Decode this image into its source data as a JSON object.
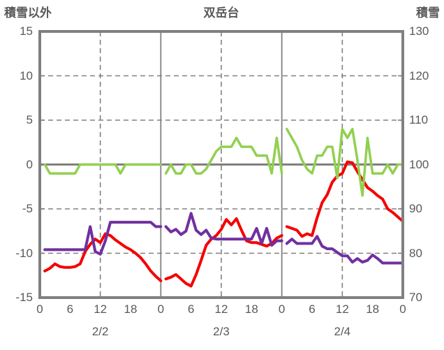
{
  "header": {
    "left_axis_title": "積雪以外",
    "chart_title": "双岳台",
    "right_axis_title": "積雪"
  },
  "colors": {
    "frame": "#808080",
    "gridline": "#808080",
    "zero_line": "#808080",
    "text": "#595959",
    "red_series": "#f40000",
    "purple_series": "#7030a0",
    "green_series": "#92d050"
  },
  "chart_data": {
    "type": "line",
    "title": "双岳台",
    "x_axis": {
      "unit": "hour",
      "range_hours": [
        0,
        72
      ],
      "tick_hours": [
        0,
        6,
        12,
        18,
        24,
        30,
        36,
        42,
        48,
        54,
        60,
        66,
        72
      ],
      "tick_labels": [
        "0",
        "6",
        "12",
        "18",
        "0",
        "6",
        "12",
        "18",
        "0",
        "6",
        "12",
        "18",
        "0"
      ],
      "day_labels": [
        {
          "text": "2/2",
          "hour": 12
        },
        {
          "text": "2/3",
          "hour": 36
        },
        {
          "text": "2/4",
          "hour": 60
        }
      ],
      "day_separator_hours": [
        24,
        48
      ],
      "dashed_gridline_hours": [
        12,
        36,
        60
      ]
    },
    "left_axis": {
      "title": "積雪以外",
      "range": [
        -15,
        15
      ],
      "ticks": [
        15,
        10,
        5,
        0,
        -5,
        -10,
        -15
      ],
      "tick_labels": [
        "15",
        "10",
        "5",
        "0",
        "-5",
        "-10",
        "-15"
      ]
    },
    "right_axis": {
      "title": "積雪",
      "range": [
        70,
        130
      ],
      "ticks": [
        130,
        120,
        110,
        100,
        90,
        80,
        70
      ],
      "tick_labels": [
        "130",
        "120",
        "110",
        "100",
        "90",
        "80",
        "70"
      ]
    },
    "grid": {
      "horizontal_dashed_at": [
        10,
        5,
        -5,
        -10
      ],
      "zero_line_solid": true
    },
    "legend": "none",
    "series": [
      {
        "name": "red-series",
        "color_key": "red_series",
        "axis": "left",
        "stroke_width": 4,
        "segments_start_hours": [
          1,
          25,
          49
        ],
        "segments": [
          [
            -12.0,
            -11.7,
            -11.2,
            -11.5,
            -11.6,
            -11.6,
            -11.5,
            -11.2,
            -9.8,
            -9.0,
            -8.4,
            -8.8,
            -7.8,
            -8.0,
            -8.5,
            -8.9,
            -9.3,
            -9.6,
            -10.0,
            -10.5,
            -11.2,
            -12.0,
            -12.6,
            -13.1
          ],
          [
            -12.9,
            -12.7,
            -12.4,
            -12.9,
            -13.4,
            -13.7,
            -12.4,
            -10.8,
            -9.1,
            -8.4,
            -8.0,
            -7.3,
            -6.2,
            -6.8,
            -6.1,
            -7.4,
            -8.6,
            -8.8,
            -8.8,
            -9.0,
            -9.2,
            -8.9,
            -8.3,
            -8.0
          ],
          [
            -7.0,
            -7.2,
            -7.4,
            -8.1,
            -7.8,
            -8.0,
            -6.0,
            -4.3,
            -3.4,
            -2.0,
            -1.3,
            -1.0,
            0.3,
            0.2,
            -0.8,
            -1.7,
            -2.6,
            -3.0,
            -3.5,
            -3.9,
            -5.0,
            -5.4,
            -5.9,
            -6.4
          ]
        ]
      },
      {
        "name": "purple-series",
        "color_key": "purple_series",
        "axis": "left",
        "stroke_width": 4,
        "segments_start_hours": [
          1,
          25,
          49
        ],
        "segments": [
          [
            -9.6,
            -9.6,
            -9.6,
            -9.6,
            -9.6,
            -9.6,
            -9.6,
            -9.6,
            -9.6,
            -7.0,
            -9.8,
            -10.1,
            -8.6,
            -6.5,
            -6.5,
            -6.5,
            -6.5,
            -6.5,
            -6.5,
            -6.5,
            -6.5,
            -6.5,
            -7.0,
            -7.0
          ],
          [
            -7.0,
            -7.6,
            -7.3,
            -7.9,
            -7.5,
            -5.5,
            -7.4,
            -7.9,
            -7.4,
            -8.3,
            -8.4,
            -8.4,
            -8.4,
            -8.4,
            -8.4,
            -8.4,
            -8.4,
            -8.4,
            -7.2,
            -8.9,
            -7.2,
            -9.1,
            -8.6,
            -8.6
          ],
          [
            -8.9,
            -8.4,
            -8.9,
            -8.9,
            -8.9,
            -8.9,
            -8.1,
            -9.2,
            -9.5,
            -9.5,
            -9.9,
            -10.3,
            -10.3,
            -11.0,
            -10.6,
            -11.0,
            -10.8,
            -10.2,
            -10.6,
            -11.1,
            -11.1,
            -11.1,
            -11.1,
            -11.1
          ]
        ]
      },
      {
        "name": "green-series",
        "color_key": "green_series",
        "axis": "right",
        "stroke_width": 3.5,
        "segments_start_hours": [
          1,
          25,
          49
        ],
        "segments": [
          [
            100,
            98,
            98,
            98,
            98,
            98,
            98,
            100,
            100,
            100,
            100,
            100,
            100,
            100,
            100,
            98,
            100,
            100,
            100,
            100,
            100,
            100,
            100,
            100
          ],
          [
            98,
            100,
            98,
            98,
            100,
            100,
            98,
            98,
            99,
            101,
            103,
            104,
            104,
            104,
            106,
            104,
            104,
            104,
            102,
            102,
            102,
            98,
            106,
            98
          ],
          [
            108,
            106,
            104,
            101,
            99,
            98,
            102,
            102,
            104,
            104,
            97,
            108,
            106,
            108,
            101,
            93,
            106,
            98,
            98,
            98,
            100,
            98,
            100,
            100
          ]
        ]
      }
    ]
  }
}
